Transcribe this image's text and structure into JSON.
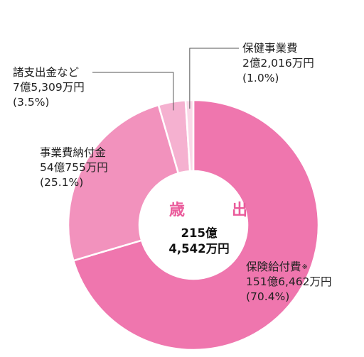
{
  "center": {
    "title": "歳　出",
    "total_line1": "215億",
    "total_line2": "4,542万円"
  },
  "colors": {
    "background": "#ffffff",
    "center_title": "#ea5b9b",
    "leader_line": "#555555",
    "separator": "#ffffff"
  },
  "chart_data": {
    "type": "pie",
    "title": "歳　出",
    "total": "215億4,542万円",
    "start_angle_deg": 0,
    "direction": "clockwise",
    "donut": true,
    "categories": [
      "保険給付費",
      "事業費納付金",
      "諸支出金など",
      "保健事業費"
    ],
    "values": [
      70.4,
      25.1,
      3.5,
      1.0
    ],
    "amounts": [
      "151億6,462万円",
      "54億755万円",
      "7億5,309万円",
      "2億2,016万円"
    ],
    "colors": [
      "#ef76ae",
      "#f292bd",
      "#f5b1d0",
      "#fad8e8"
    ],
    "labels": [
      {
        "name": "保険給付費",
        "note": "※",
        "amount": "151億6,462万円",
        "pct": "(70.4%)"
      },
      {
        "name": "事業費納付金",
        "note": "",
        "amount": "54億755万円",
        "pct": "(25.1%)"
      },
      {
        "name": "諸支出金など",
        "note": "",
        "amount": "7億5,309万円",
        "pct": "(3.5%)"
      },
      {
        "name": "保健事業費",
        "note": "",
        "amount": "2億2,016万円",
        "pct": "(1.0%)"
      }
    ]
  }
}
